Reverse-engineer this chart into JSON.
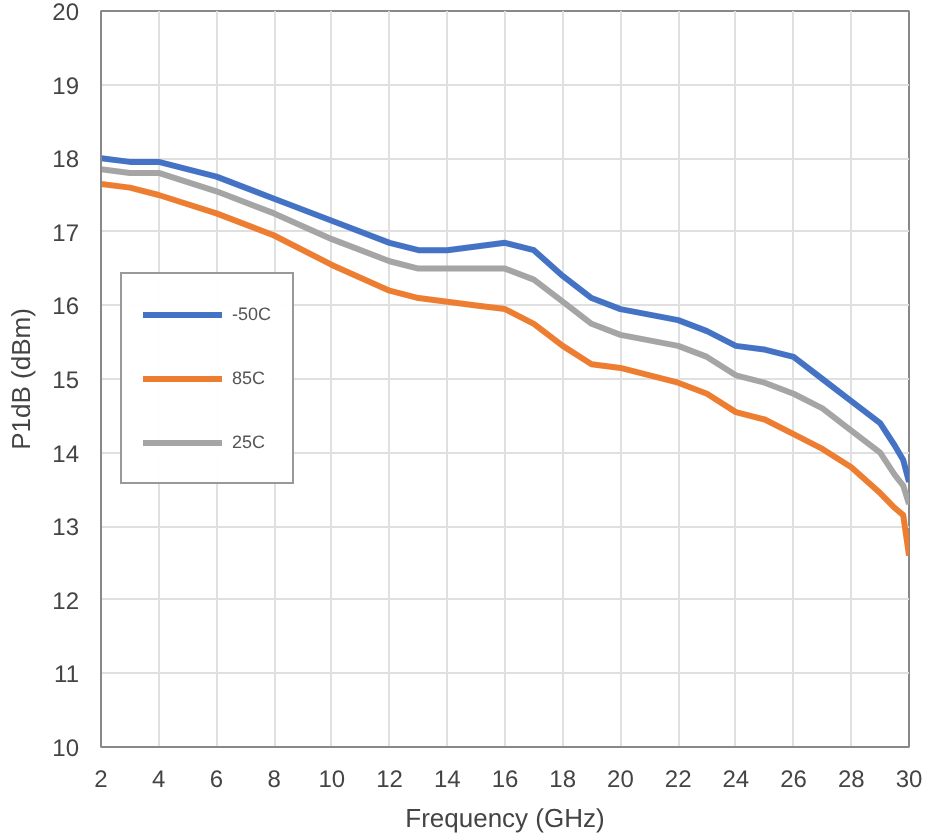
{
  "chart_data": {
    "type": "line",
    "xlabel": "Frequency (GHz)",
    "ylabel": "P1dB (dBm)",
    "xlim": [
      2,
      30
    ],
    "ylim": [
      10,
      20
    ],
    "xticks": [
      2,
      4,
      6,
      8,
      10,
      12,
      14,
      16,
      18,
      20,
      22,
      24,
      26,
      28,
      30
    ],
    "yticks": [
      10,
      11,
      12,
      13,
      14,
      15,
      16,
      17,
      18,
      19,
      20
    ],
    "grid": true,
    "legend": "left",
    "marker": "none",
    "line_style": "solid",
    "x": [
      2,
      3,
      4,
      6,
      8,
      10,
      12,
      13,
      14,
      15,
      16,
      17,
      18,
      19,
      20,
      22,
      23,
      24,
      25,
      26,
      27,
      28,
      29,
      29.5,
      29.8,
      30
    ],
    "series": [
      {
        "name": "-50C",
        "color": "#4472c4",
        "values": [
          18.0,
          17.95,
          17.95,
          17.75,
          17.45,
          17.15,
          16.85,
          16.75,
          16.75,
          16.8,
          16.85,
          16.75,
          16.4,
          16.1,
          15.95,
          15.8,
          15.65,
          15.45,
          15.4,
          15.3,
          15.0,
          14.7,
          14.4,
          14.1,
          13.9,
          13.6
        ]
      },
      {
        "name": "85C",
        "color": "#ed7d31",
        "values": [
          17.65,
          17.6,
          17.5,
          17.25,
          16.95,
          16.55,
          16.2,
          16.1,
          16.05,
          16.0,
          15.95,
          15.75,
          15.45,
          15.2,
          15.15,
          14.95,
          14.8,
          14.55,
          14.45,
          14.25,
          14.05,
          13.8,
          13.45,
          13.25,
          13.15,
          12.6
        ]
      },
      {
        "name": "25C",
        "color": "#a5a5a5",
        "values": [
          17.85,
          17.8,
          17.8,
          17.55,
          17.25,
          16.9,
          16.6,
          16.5,
          16.5,
          16.5,
          16.5,
          16.35,
          16.05,
          15.75,
          15.6,
          15.45,
          15.3,
          15.05,
          14.95,
          14.8,
          14.6,
          14.3,
          14.0,
          13.7,
          13.55,
          13.3
        ]
      }
    ]
  }
}
